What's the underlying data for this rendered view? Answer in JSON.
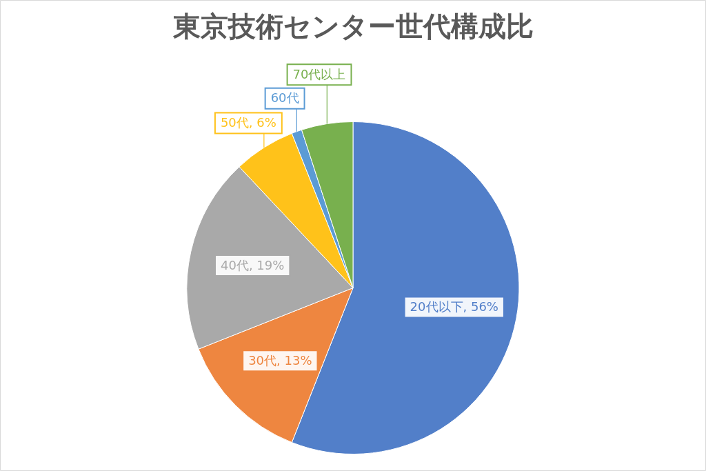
{
  "chart_data": {
    "type": "pie",
    "title": "東京技術センター世代構成比",
    "categories": [
      "20代以下",
      "30代",
      "40代",
      "50代",
      "60代",
      "70代以上"
    ],
    "values": [
      56,
      13,
      19,
      6,
      1,
      5
    ],
    "value_labels": [
      "56%",
      "13%",
      "19%",
      "6%",
      null,
      null
    ],
    "colors": [
      "#527fc9",
      "#ee8640",
      "#a9a9a9",
      "#ffc21a",
      "#5b9bd5",
      "#78b04e"
    ]
  }
}
